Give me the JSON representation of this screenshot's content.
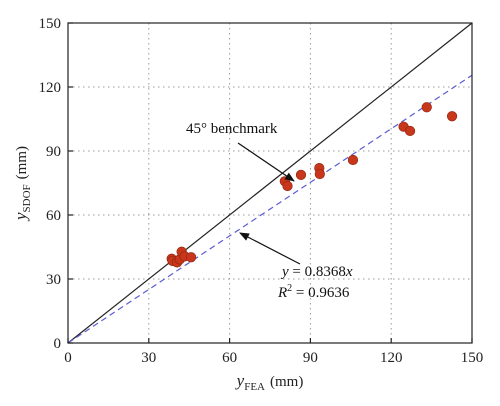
{
  "chart_data": {
    "type": "scatter",
    "title": "",
    "xlabel": {
      "var": "y",
      "sub": "FEA",
      "unit": "(mm)"
    },
    "ylabel": {
      "var": "y",
      "sub": "SDOF",
      "unit": "(mm)"
    },
    "xlim": [
      0,
      150
    ],
    "ylim": [
      0,
      150
    ],
    "xticks": [
      "0",
      "30",
      "60",
      "90",
      "120",
      "150"
    ],
    "yticks": [
      "0",
      "30",
      "60",
      "90",
      "120",
      "150"
    ],
    "grid": "dotted",
    "points": [
      {
        "x": 38.5,
        "y": 39.5
      },
      {
        "x": 38.8,
        "y": 38.5
      },
      {
        "x": 40.5,
        "y": 37.8
      },
      {
        "x": 41.5,
        "y": 39.2
      },
      {
        "x": 42.2,
        "y": 42.8
      },
      {
        "x": 43.3,
        "y": 40.6
      },
      {
        "x": 45.7,
        "y": 40.2
      },
      {
        "x": 80.5,
        "y": 75.8
      },
      {
        "x": 81.5,
        "y": 73.6
      },
      {
        "x": 86.5,
        "y": 78.8
      },
      {
        "x": 93.3,
        "y": 82.0
      },
      {
        "x": 93.5,
        "y": 79.2
      },
      {
        "x": 105.8,
        "y": 85.8
      },
      {
        "x": 124.6,
        "y": 101.4
      },
      {
        "x": 127.0,
        "y": 99.4
      },
      {
        "x": 133.2,
        "y": 110.5
      },
      {
        "x": 142.6,
        "y": 106.3
      }
    ],
    "lines": [
      {
        "kind": "benchmark",
        "slope": 1.0,
        "style": "solid",
        "color": "#222222"
      },
      {
        "kind": "fit",
        "slope": 0.8368,
        "style": "dashed",
        "color": "#5b5bd6"
      }
    ],
    "point_color": "#c8361b",
    "annotations": {
      "benchmark_label": "45° benchmark",
      "fit_eq_lhs": "y",
      "fit_eq_rhs": " = 0.8368",
      "fit_eq_var": "x",
      "r2_lhs": "R",
      "r2_sup": "2",
      "r2_rhs": " = 0.9636"
    }
  }
}
